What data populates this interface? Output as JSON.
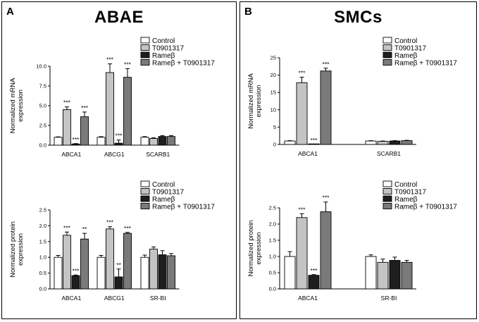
{
  "colors": {
    "Control": "#ffffff",
    "T0901317": "#c4c4c4",
    "Rameta": "#1e1e1e",
    "Combined": "#7a7a7a",
    "axis": "#000000"
  },
  "panels": [
    {
      "letter": "A",
      "title": "ABAE"
    },
    {
      "letter": "B",
      "title": "SMCs"
    }
  ],
  "chart_data": [
    {
      "id": "a-mrna",
      "panel": "A",
      "type": "bar",
      "title": "",
      "xlabel": "",
      "ylabel": "Normalized mRNA expression",
      "ylabel_lines": [
        "Normalized mRNA",
        "expression"
      ],
      "ylim": [
        0,
        10.0
      ],
      "yticks": [
        "0.0",
        "2.5",
        "5.0",
        "7.5",
        "10.0"
      ],
      "categories": [
        "ABCA1",
        "ABCG1",
        "SCARB1"
      ],
      "series": [
        {
          "name": "Control",
          "values": [
            1.0,
            1.0,
            1.0
          ],
          "errors": [
            0.05,
            0.08,
            0.08
          ],
          "annotations": [
            "",
            "",
            ""
          ]
        },
        {
          "name": "T0901317",
          "values": [
            4.5,
            9.2,
            0.85
          ],
          "errors": [
            0.35,
            1.1,
            0.08
          ],
          "annotations": [
            "***",
            "***",
            ""
          ]
        },
        {
          "name": "Rameβ",
          "values": [
            0.15,
            0.25,
            1.1
          ],
          "errors": [
            0.05,
            0.4,
            0.1
          ],
          "annotations": [
            "***",
            "***",
            ""
          ]
        },
        {
          "name": "Rameβ + T0901317",
          "values": [
            3.6,
            8.6,
            1.1
          ],
          "errors": [
            0.6,
            1.1,
            0.1
          ],
          "annotations": [
            "***",
            "***",
            ""
          ]
        }
      ],
      "legend": "top-right"
    },
    {
      "id": "a-protein",
      "panel": "A",
      "type": "bar",
      "title": "",
      "xlabel": "",
      "ylabel": "Normalized protein expression",
      "ylabel_lines": [
        "Normalized protein",
        "expression"
      ],
      "ylim": [
        0,
        2.5
      ],
      "yticks": [
        "0.0",
        "0.5",
        "1.0",
        "1.5",
        "2.0",
        "2.5"
      ],
      "categories": [
        "ABCA1",
        "ABCG1",
        "SR-BI"
      ],
      "series": [
        {
          "name": "Control",
          "values": [
            1.0,
            1.0,
            1.0
          ],
          "errors": [
            0.06,
            0.06,
            0.07
          ],
          "annotations": [
            "",
            "",
            ""
          ]
        },
        {
          "name": "T0901317",
          "values": [
            1.7,
            1.9,
            1.26
          ],
          "errors": [
            0.1,
            0.07,
            0.07
          ],
          "annotations": [
            "***",
            "***",
            ""
          ]
        },
        {
          "name": "Rameβ",
          "values": [
            0.42,
            0.38,
            1.08
          ],
          "errors": [
            0.02,
            0.25,
            0.13
          ],
          "annotations": [
            "***",
            "**",
            ""
          ]
        },
        {
          "name": "Rameβ + T0901317",
          "values": [
            1.58,
            1.76,
            1.05
          ],
          "errors": [
            0.18,
            0.03,
            0.07
          ],
          "annotations": [
            "**",
            "***",
            ""
          ]
        }
      ],
      "legend": "top-right"
    },
    {
      "id": "b-mrna",
      "panel": "B",
      "type": "bar",
      "title": "",
      "xlabel": "",
      "ylabel": "Normalized mRNA expression",
      "ylabel_lines": [
        "Normalized mRNA",
        "expression"
      ],
      "ylim": [
        0,
        25
      ],
      "yticks": [
        "0",
        "5",
        "10",
        "15",
        "20",
        "25"
      ],
      "categories": [
        "ABCA1",
        "SCARB1"
      ],
      "series": [
        {
          "name": "Control",
          "values": [
            1.0,
            1.0
          ],
          "errors": [
            0.1,
            0.1
          ],
          "annotations": [
            "",
            ""
          ]
        },
        {
          "name": "T0901317",
          "values": [
            17.8,
            0.9
          ],
          "errors": [
            1.6,
            0.1
          ],
          "annotations": [
            "***",
            ""
          ]
        },
        {
          "name": "Rameβ",
          "values": [
            0.05,
            1.0
          ],
          "errors": [
            0.0,
            0.1
          ],
          "annotations": [
            "***",
            ""
          ]
        },
        {
          "name": "Rameβ + T0901317",
          "values": [
            21.2,
            1.1
          ],
          "errors": [
            0.8,
            0.1
          ],
          "annotations": [
            "***",
            ""
          ]
        }
      ],
      "legend": "top-right"
    },
    {
      "id": "b-protein",
      "panel": "B",
      "type": "bar",
      "title": "",
      "xlabel": "",
      "ylabel": "Normalized protein expression",
      "ylabel_lines": [
        "Normalized protein",
        "expression"
      ],
      "ylim": [
        0,
        2.5
      ],
      "yticks": [
        "0.0",
        "0.5",
        "1.0",
        "1.5",
        "2.0",
        "2.5"
      ],
      "categories": [
        "ABCA1",
        "SR-BI"
      ],
      "series": [
        {
          "name": "Control",
          "values": [
            1.0,
            1.0
          ],
          "errors": [
            0.15,
            0.05
          ],
          "annotations": [
            "",
            ""
          ]
        },
        {
          "name": "T0901317",
          "values": [
            2.2,
            0.82
          ],
          "errors": [
            0.12,
            0.1
          ],
          "annotations": [
            "***",
            ""
          ]
        },
        {
          "name": "Rameβ",
          "values": [
            0.42,
            0.88
          ],
          "errors": [
            0.02,
            0.1
          ],
          "annotations": [
            "***",
            ""
          ]
        },
        {
          "name": "Rameβ + T0901317",
          "values": [
            2.38,
            0.82
          ],
          "errors": [
            0.3,
            0.06
          ],
          "annotations": [
            "***",
            ""
          ]
        }
      ],
      "legend": "top-right"
    }
  ]
}
